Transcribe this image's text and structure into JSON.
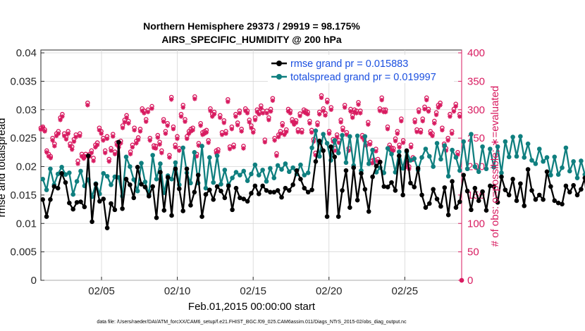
{
  "chart_data": {
    "type": "line",
    "title": "Northern Hemisphere 29373 / 29919 = 98.175%",
    "subtitle": "AIRS_SPECIFIC_HUMIDITY @ 200 hPa",
    "xlabel": "Feb.01,2015 00:00:00 start",
    "ylabel": "rmse and totalspread",
    "ylabel_right": "# of obs: o=possible; ∗=evaluated",
    "footer": "data file: /Users/raeder/DAI/ATM_forcXX/CAM6_setup/f.e21.FHIST_BGC.f09_025.CAM6assim.011/Diags_NTrS_2015-02/obs_diag_output.nc",
    "xlim": [
      1,
      28.75
    ],
    "ylim": [
      0,
      0.0405
    ],
    "ylim_right": [
      0,
      405
    ],
    "x_ticks": [
      5,
      10,
      15,
      20,
      25
    ],
    "x_tick_labels": [
      "02/05",
      "02/10",
      "02/15",
      "02/20",
      "02/25"
    ],
    "y_ticks": [
      0,
      0.005,
      0.01,
      0.015,
      0.02,
      0.025,
      0.03,
      0.035,
      0.04
    ],
    "y_tick_labels": [
      "0",
      "0.005",
      "0.01",
      "0.015",
      "0.02",
      "0.025",
      "0.03",
      "0.035",
      "0.04"
    ],
    "y_right_ticks": [
      0,
      50,
      100,
      150,
      200,
      250,
      300,
      350,
      400
    ],
    "y_right_tick_labels": [
      "0",
      "50",
      "100",
      "150",
      "200",
      "250",
      "300",
      "350",
      "400"
    ],
    "x_start": 1.125,
    "x_step": 0.25,
    "series": [
      {
        "name": "rmse grand pr = 0.015883",
        "color": "#000000",
        "values": [
          0.0142,
          0.0112,
          0.0142,
          0.0165,
          0.0162,
          0.0188,
          0.0172,
          0.0136,
          0.0125,
          0.0137,
          0.0138,
          0.0129,
          0.0219,
          0.0103,
          0.0169,
          0.0139,
          0.0143,
          0.0092,
          0.0135,
          0.0124,
          0.0243,
          0.0126,
          0.0178,
          0.0168,
          0.0145,
          0.0199,
          0.0169,
          0.0164,
          0.0148,
          0.0165,
          0.011,
          0.019,
          0.0123,
          0.0181,
          0.0114,
          0.0196,
          0.0161,
          0.0122,
          0.0196,
          0.0132,
          0.0155,
          0.0185,
          0.0112,
          0.0151,
          0.0159,
          0.0142,
          0.0165,
          0.0157,
          0.0145,
          0.0166,
          0.0124,
          0.0162,
          0.0145,
          0.0143,
          0.0139,
          0.0153,
          0.0166,
          0.0152,
          0.0166,
          0.0158,
          0.0155,
          0.0155,
          0.0158,
          0.0146,
          0.0162,
          0.0158,
          0.0168,
          0.0193,
          0.0178,
          0.0162,
          0.0155,
          0.0159,
          0.0209,
          0.0245,
          0.0228,
          0.0112,
          0.0235,
          0.0217,
          0.0112,
          0.0158,
          0.0193,
          0.0128,
          0.0198,
          0.0141,
          0.0188,
          0.016,
          0.0121,
          0.0182,
          0.0201,
          0.0208,
          0.0165,
          0.0164,
          0.0172,
          0.0158,
          0.0219,
          0.015,
          0.0228,
          0.0171,
          0.0164,
          0.0197,
          0.015,
          0.0128,
          0.0135,
          0.016,
          0.0143,
          0.013,
          0.0163,
          0.0115,
          0.0174,
          0.0128,
          0.0138,
          0.0185,
          0.0157,
          0.0124,
          0.0162,
          0.014,
          0.0156,
          0.0123,
          0.0166,
          0.0165,
          0.0137,
          0.0182,
          0.0159,
          0.015,
          0.0178,
          0.014,
          0.017,
          0.0131,
          0.0195,
          0.0158,
          0.0142,
          0.015,
          0.0142,
          0.0191,
          0.0165,
          0.014,
          0.0136,
          0.0134,
          0.0166,
          0.0155,
          0.0167,
          0.015,
          0.016,
          0.018,
          0.0104
        ]
      },
      {
        "name": "totalspread grand pr = 0.019997",
        "color": "#0f7f7f",
        "values": [
          0.0178,
          0.0159,
          0.0196,
          0.0168,
          0.0187,
          0.0199,
          0.0186,
          0.0189,
          0.0151,
          0.0174,
          0.0192,
          0.0166,
          0.0177,
          0.0147,
          0.017,
          0.0152,
          0.0188,
          0.0183,
          0.0168,
          0.0182,
          0.0181,
          0.0148,
          0.0217,
          0.02,
          0.0177,
          0.0157,
          0.0206,
          0.0173,
          0.0151,
          0.022,
          0.0178,
          0.0205,
          0.0154,
          0.0184,
          0.0178,
          0.0207,
          0.0168,
          0.0233,
          0.0189,
          0.0171,
          0.0225,
          0.0171,
          0.0236,
          0.0162,
          0.0216,
          0.0172,
          0.0219,
          0.0169,
          0.0194,
          0.0168,
          0.018,
          0.019,
          0.0185,
          0.0192,
          0.0175,
          0.0187,
          0.0203,
          0.0185,
          0.0194,
          0.0174,
          0.0197,
          0.018,
          0.0202,
          0.0195,
          0.0205,
          0.0191,
          0.0198,
          0.0187,
          0.0203,
          0.0185,
          0.0189,
          0.0233,
          0.0263,
          0.0218,
          0.0257,
          0.0241,
          0.0211,
          0.0246,
          0.0224,
          0.0255,
          0.0207,
          0.0253,
          0.0202,
          0.0254,
          0.0193,
          0.0253,
          0.0205,
          0.0229,
          0.019,
          0.0198,
          0.0189,
          0.0232,
          0.0222,
          0.019,
          0.0226,
          0.0197,
          0.0226,
          0.0211,
          0.0214,
          0.0194,
          0.0216,
          0.0231,
          0.0218,
          0.02,
          0.0241,
          0.0213,
          0.0237,
          0.0183,
          0.0229,
          0.0216,
          0.0193,
          0.0244,
          0.0196,
          0.0257,
          0.02,
          0.0191,
          0.0235,
          0.0196,
          0.0231,
          0.0199,
          0.0235,
          0.0189,
          0.0244,
          0.0217,
          0.0252,
          0.0218,
          0.0253,
          0.0216,
          0.024,
          0.0211,
          0.0205,
          0.0231,
          0.0209,
          0.0216,
          0.0185,
          0.0217,
          0.0186,
          0.0198,
          0.0233,
          0.0192,
          0.0209,
          0.018,
          0.021,
          0.0186,
          0.0187,
          0.018
        ]
      }
    ],
    "obs_possible": [
      268,
      270,
      265,
      228,
      222,
      218,
      250,
      240,
      258,
      262,
      286,
      292,
      258,
      252,
      262,
      240,
      235,
      248,
      256,
      210,
      258,
      222,
      218,
      222,
      312,
      222,
      228,
      215,
      238,
      242,
      268,
      262,
      250,
      228,
      253,
      213,
      232,
      257,
      226,
      242,
      238,
      245,
      272,
      282,
      290,
      280,
      226,
      238,
      268,
      245,
      251,
      266,
      302,
      298,
      283,
      300,
      250,
      306,
      237,
      236,
      255,
      243,
      228,
      283,
      262,
      276,
      220,
      322,
      270,
      238,
      253,
      232,
      292,
      308,
      283,
      253,
      262,
      266,
      268,
      323,
      222,
      241,
      276,
      260,
      262,
      264,
      246,
      302,
      292,
      296,
      228,
      230,
      290,
      260,
      281,
      262,
      318,
      235,
      270,
      238,
      292,
      277,
      298,
      266,
      236,
      302,
      298,
      282,
      272,
      264,
      286,
      300,
      296,
      307,
      298,
      247,
      298,
      286,
      301,
      320,
      250,
      223,
      256,
      262,
      276,
      260,
      265,
      301,
      298,
      283,
      278,
      281,
      265,
      293,
      264,
      300,
      298,
      296,
      280,
      264,
      248,
      224,
      277,
      296,
      325,
      302,
      294,
      317,
      262,
      304,
      248,
      232,
      256,
      246,
      282,
      268,
      308,
      260,
      232,
      301,
      290,
      300,
      298,
      313,
      298,
      255,
      250,
      241,
      278,
      243,
      210,
      212,
      231,
      213,
      302,
      321,
      300,
      300,
      270,
      238,
      233,
      232,
      249,
      262,
      238,
      284,
      246,
      203,
      211,
      200,
      238,
      216,
      282,
      265,
      300,
      264,
      284,
      305,
      321,
      301,
      262,
      258,
      280,
      295,
      308,
      312,
      268,
      240,
      232,
      250,
      292,
      262,
      301,
      310,
      225,
      292,
      0
    ],
    "obs_evaluated": [
      265,
      268,
      262,
      225,
      218,
      215,
      246,
      236,
      254,
      258,
      282,
      288,
      254,
      248,
      258,
      236,
      230,
      244,
      252,
      205,
      254,
      218,
      214,
      218,
      308,
      218,
      224,
      210,
      234,
      238,
      264,
      258,
      246,
      224,
      249,
      209,
      228,
      253,
      222,
      238,
      234,
      241,
      268,
      278,
      286,
      276,
      222,
      234,
      264,
      241,
      247,
      262,
      298,
      294,
      279,
      296,
      246,
      302,
      233,
      232,
      251,
      239,
      224,
      279,
      258,
      272,
      216,
      318,
      266,
      234,
      249,
      228,
      288,
      304,
      279,
      249,
      258,
      262,
      264,
      319,
      218,
      237,
      272,
      256,
      258,
      260,
      242,
      298,
      288,
      292,
      224,
      226,
      286,
      256,
      277,
      258,
      314,
      231,
      266,
      234,
      288,
      273,
      294,
      262,
      232,
      298,
      294,
      278,
      268,
      260,
      282,
      296,
      292,
      303,
      294,
      243,
      294,
      282,
      297,
      316,
      246,
      219,
      252,
      258,
      272,
      256,
      261,
      297,
      294,
      279,
      274,
      277,
      261,
      289,
      260,
      296,
      294,
      292,
      276,
      260,
      244,
      220,
      273,
      292,
      321,
      298,
      290,
      313,
      258,
      300,
      244,
      228,
      252,
      242,
      278,
      264,
      304,
      256,
      228,
      297,
      286,
      296,
      294,
      309,
      294,
      251,
      246,
      237,
      274,
      239,
      206,
      208,
      227,
      209,
      298,
      317,
      296,
      296,
      266,
      234,
      229,
      228,
      245,
      258,
      234,
      280,
      242,
      199,
      207,
      196,
      234,
      212,
      278,
      261,
      296,
      260,
      280,
      301,
      317,
      297,
      258,
      254,
      276,
      291,
      304,
      308,
      264,
      236,
      228,
      246,
      288,
      258,
      297,
      306,
      221,
      288,
      0
    ]
  }
}
